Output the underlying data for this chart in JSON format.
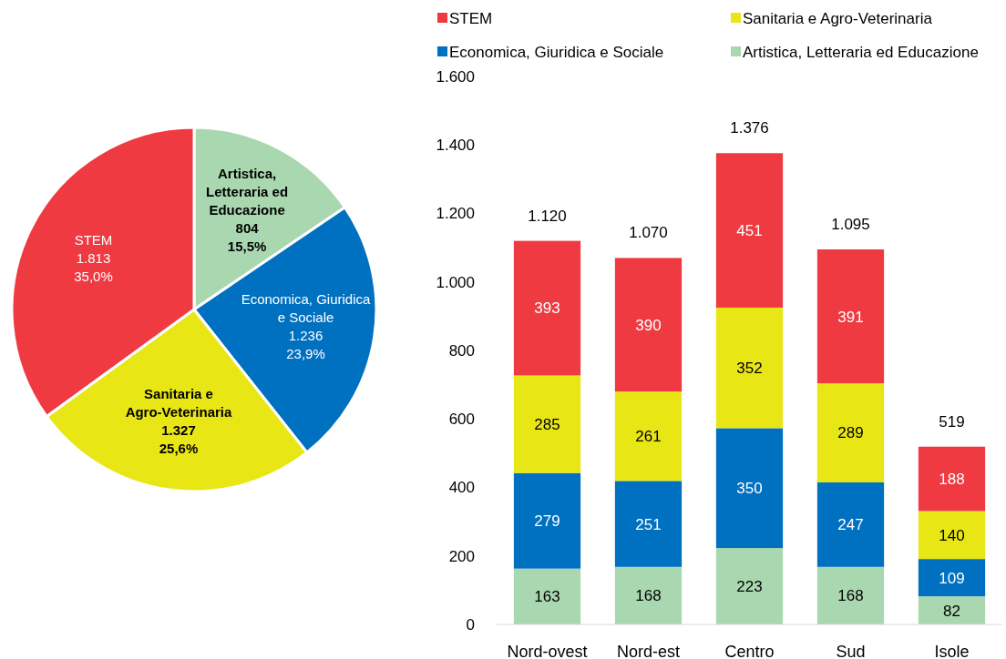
{
  "chart_data": [
    {
      "type": "pie",
      "categories": [
        "Artistica, Letteraria ed Educazione",
        "Economica, Giuridica e Sociale",
        "Sanitaria e Agro-Veterinaria",
        "STEM"
      ],
      "values": [
        804,
        1236,
        1327,
        1813
      ],
      "colors": [
        "#a9d8b0",
        "#0070c0",
        "#e8e615",
        "#ef3a42"
      ],
      "value_labels": [
        "804\n15,5%",
        "1.236\n23,9%",
        "1.327\n25,6%",
        "1.813\n35,0%"
      ]
    },
    {
      "type": "bar",
      "stacked": true,
      "categories": [
        "Nord-ovest",
        "Nord-est",
        "Centro",
        "Sud",
        "Isole"
      ],
      "series": [
        {
          "name": "Artistica, Letteraria ed Educazione",
          "color": "#a9d8b0",
          "values": [
            163,
            168,
            223,
            168,
            82
          ]
        },
        {
          "name": "Economica, Giuridica e Sociale",
          "color": "#0070c0",
          "values": [
            279,
            251,
            350,
            247,
            109
          ]
        },
        {
          "name": "Sanitaria e Agro-Veterinaria",
          "color": "#e8e615",
          "values": [
            285,
            261,
            352,
            289,
            140
          ]
        },
        {
          "name": "STEM",
          "color": "#ef3a42",
          "values": [
            393,
            390,
            451,
            391,
            188
          ]
        }
      ],
      "ylim": [
        0,
        1600
      ],
      "yticks": [
        0,
        {
          "value": 200,
          "label": "200"
        },
        {
          "value": 400,
          "label": "400"
        },
        {
          "value": 600,
          "label": "600"
        },
        {
          "value": 800,
          "label": "800"
        },
        {
          "value": 1000,
          "label": "1.000"
        },
        {
          "value": 1200,
          "label": "1.200"
        },
        {
          "value": 1400,
          "label": "1.400"
        },
        {
          "value": 1600,
          "label": "1.600"
        }
      ],
      "data_labels": true,
      "totals": [
        "1.120",
        "1.070",
        "1.376",
        "1.095",
        "519"
      ],
      "legend": "top",
      "grid": false
    }
  ]
}
